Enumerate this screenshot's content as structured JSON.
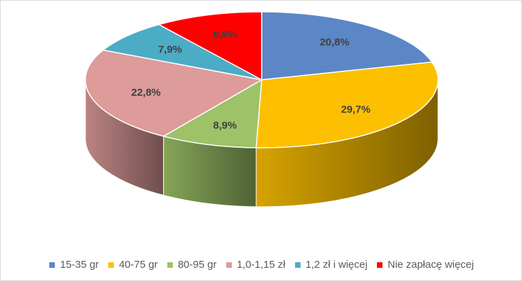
{
  "chart_data": {
    "type": "pie",
    "title": "",
    "categories": [
      "15-35 gr",
      "40-75 gr",
      "80-95 gr",
      "1,0-1,15 zł",
      "1,2 zł i więcej",
      "Nie zapłacę więcej"
    ],
    "values": [
      20.8,
      29.7,
      8.9,
      22.8,
      7.9,
      9.9
    ],
    "labels": [
      "20,8%",
      "29,7%",
      "8,9%",
      "22,8%",
      "7,9%",
      "9,9%"
    ],
    "colors": [
      "#5b87c6",
      "#fcc000",
      "#9dc267",
      "#dd9b9a",
      "#4bacc6",
      "#ff0000"
    ],
    "style": "3d",
    "legend_position": "bottom"
  }
}
